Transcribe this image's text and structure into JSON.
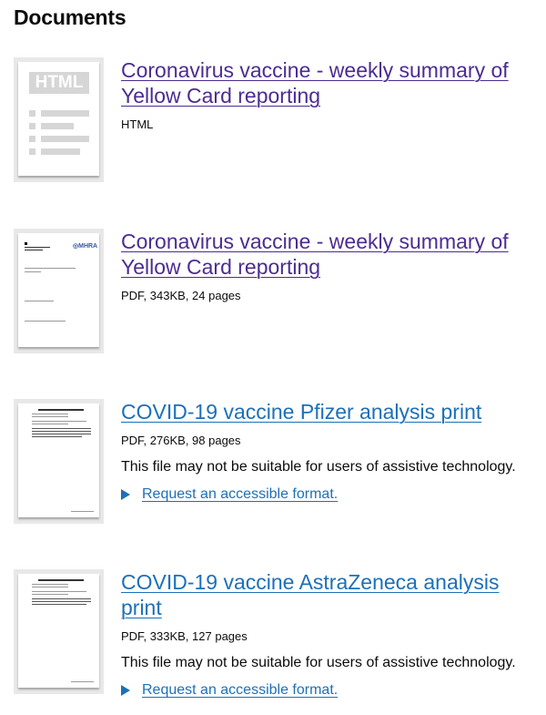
{
  "heading": "Documents",
  "documents": [
    {
      "title": "Coronavirus vaccine - weekly summary of Yellow Card reporting",
      "title_lines": [
        "Coronavirus vaccine - weekly summary of",
        "Yellow Card reporting"
      ],
      "meta": "HTML",
      "thumbnail": "html-icon",
      "thumbnail_label": "HTML",
      "visited": true
    },
    {
      "title": "Coronavirus vaccine - weekly summary of Yellow Card reporting",
      "title_lines": [
        "Coronavirus vaccine - weekly summary of",
        "Yellow Card reporting"
      ],
      "meta": "PDF, 343KB, 24 pages",
      "thumbnail": "pdf-cover",
      "thumbnail_logo": "MHRA",
      "visited": true
    },
    {
      "title": "COVID-19 vaccine Pfizer analysis print",
      "title_lines": [
        "COVID-19 vaccine Pfizer analysis print"
      ],
      "meta": "PDF, 276KB, 98 pages",
      "warning": "This file may not be suitable for users of assistive technology.",
      "request_link": "Request an accessible format.",
      "thumbnail": "pdf-cover",
      "visited": false
    },
    {
      "title": "COVID-19 vaccine AstraZeneca analysis print",
      "title_lines": [
        "COVID-19 vaccine AstraZeneca analysis",
        "print"
      ],
      "meta": "PDF, 333KB, 127 pages",
      "warning": "This file may not be suitable for users of assistive technology.",
      "request_link": "Request an accessible format.",
      "thumbnail": "pdf-cover",
      "visited": false
    }
  ],
  "colors": {
    "visited_link": "#4c2c92",
    "link": "#1d70b8",
    "text": "#0b0c0c"
  }
}
